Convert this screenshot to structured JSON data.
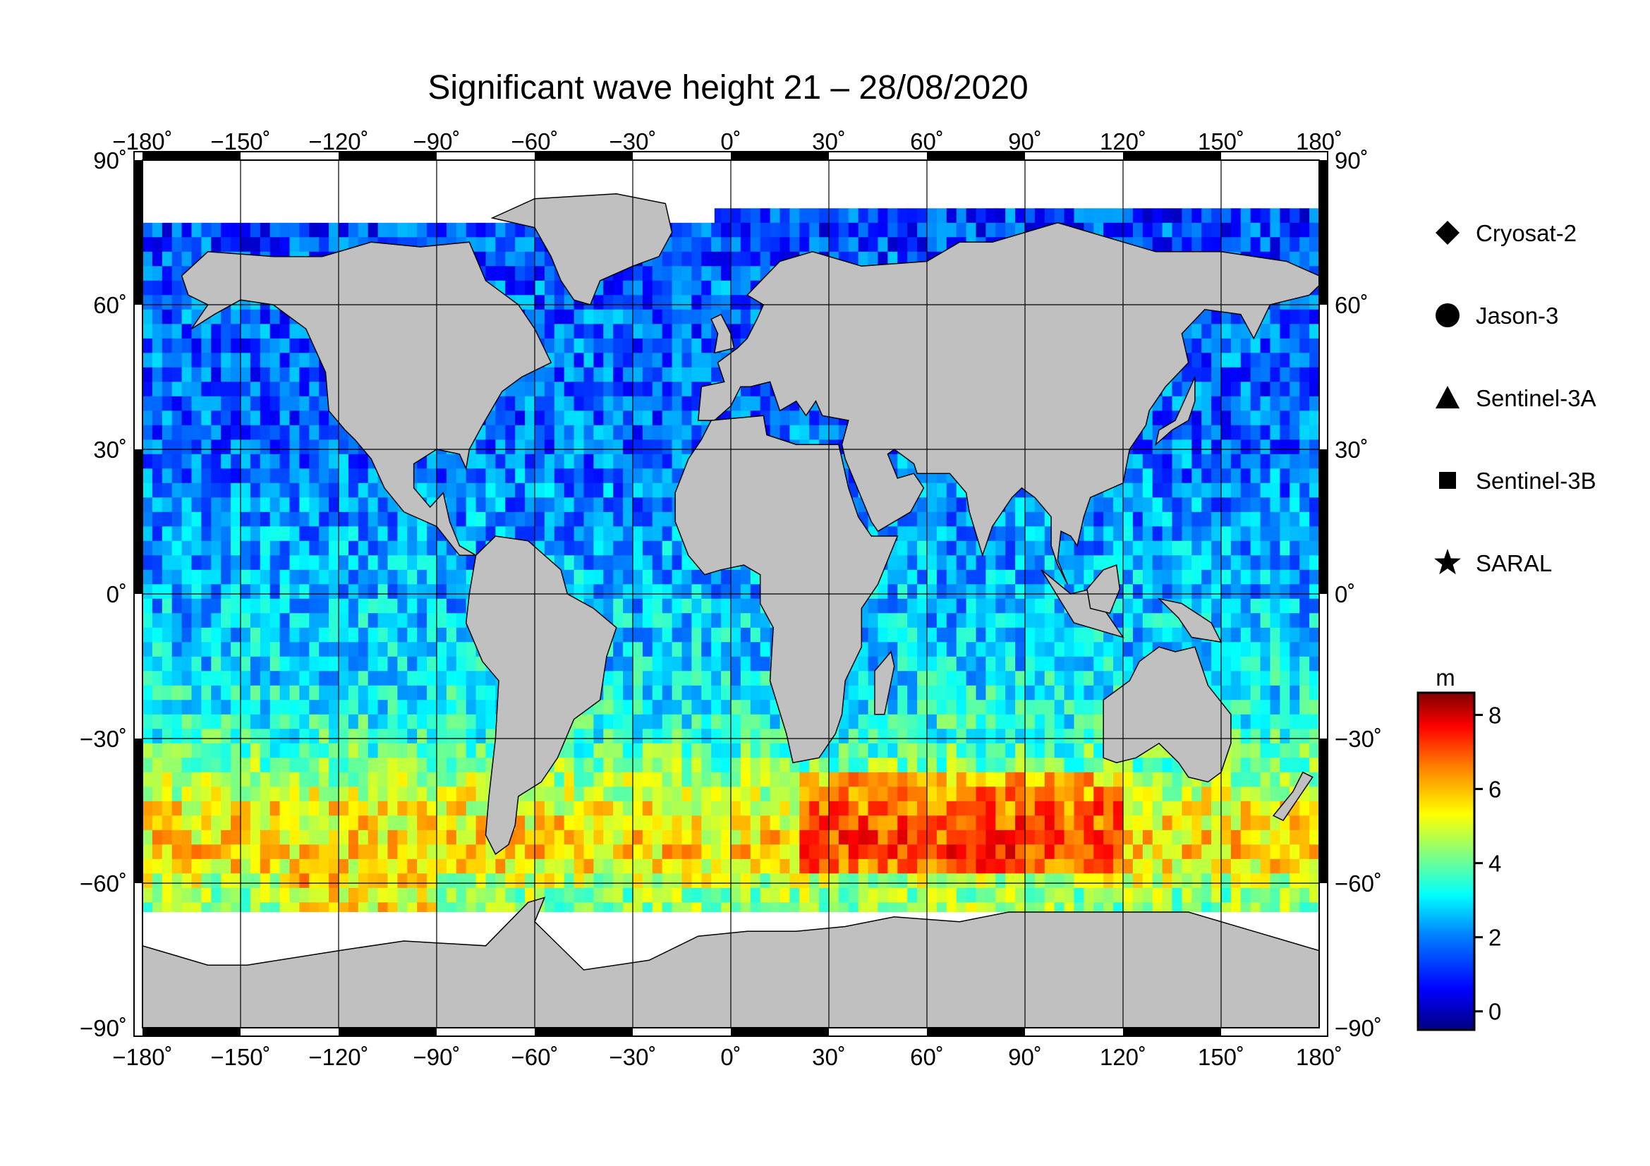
{
  "title": "Significant wave height 21 – 28/08/2020",
  "map": {
    "type": "map",
    "projection": "equirectangular",
    "lon_range": [
      -180,
      180
    ],
    "lat_range": [
      -90,
      90
    ],
    "lon_ticks": [
      -180,
      -150,
      -120,
      -90,
      -60,
      -30,
      0,
      30,
      60,
      90,
      120,
      150,
      180
    ],
    "lat_ticks": [
      90,
      60,
      30,
      0,
      -30,
      -60,
      -90
    ],
    "lon_tick_labels": [
      "−180˚",
      "−150˚",
      "−120˚",
      "−90˚",
      "−60˚",
      "−30˚",
      "0˚",
      "30˚",
      "60˚",
      "90˚",
      "120˚",
      "150˚",
      "180˚"
    ],
    "lat_tick_labels": [
      "90˚",
      "60˚",
      "30˚",
      "0˚",
      "−30˚",
      "−60˚",
      "−90˚"
    ],
    "grid": true,
    "land_color": "#c0c0c0",
    "ice_color": "#ffffff"
  },
  "legend": {
    "placement": "right",
    "items": [
      {
        "label": "Cryosat-2",
        "symbol": "diamond-icon"
      },
      {
        "label": "Jason-3",
        "symbol": "circle-icon"
      },
      {
        "label": "Sentinel-3A",
        "symbol": "triangle-icon"
      },
      {
        "label": "Sentinel-3B",
        "symbol": "square-icon"
      },
      {
        "label": "SARAL",
        "symbol": "star-icon"
      }
    ]
  },
  "colorbar": {
    "unit": "m",
    "range": [
      -0.5,
      8.6
    ],
    "ticks": [
      0,
      2,
      4,
      6,
      8
    ],
    "tick_labels": [
      "0",
      "2",
      "4",
      "6",
      "8"
    ],
    "colors": [
      "#00007f",
      "#0000ff",
      "#0080ff",
      "#00ffff",
      "#80ff80",
      "#ffff00",
      "#ff8000",
      "#ff0000",
      "#7f0000"
    ]
  },
  "chart_data": {
    "type": "heatmap",
    "title": "Significant wave height 21 – 28/08/2020",
    "variable": "significant wave height",
    "unit": "m",
    "value_range": [
      0,
      8
    ],
    "x_range": [
      -180,
      180
    ],
    "y_range": [
      -90,
      90
    ],
    "zonal_profile": [
      {
        "lat": 75,
        "value": 1.2
      },
      {
        "lat": 60,
        "value": 1.6
      },
      {
        "lat": 45,
        "value": 1.5
      },
      {
        "lat": 30,
        "value": 1.6
      },
      {
        "lat": 15,
        "value": 2.0
      },
      {
        "lat": 0,
        "value": 2.3
      },
      {
        "lat": -15,
        "value": 2.6
      },
      {
        "lat": -30,
        "value": 3.3
      },
      {
        "lat": -45,
        "value": 5.2
      },
      {
        "lat": -55,
        "value": 5.5
      },
      {
        "lat": -62,
        "value": 4.2
      }
    ]
  }
}
